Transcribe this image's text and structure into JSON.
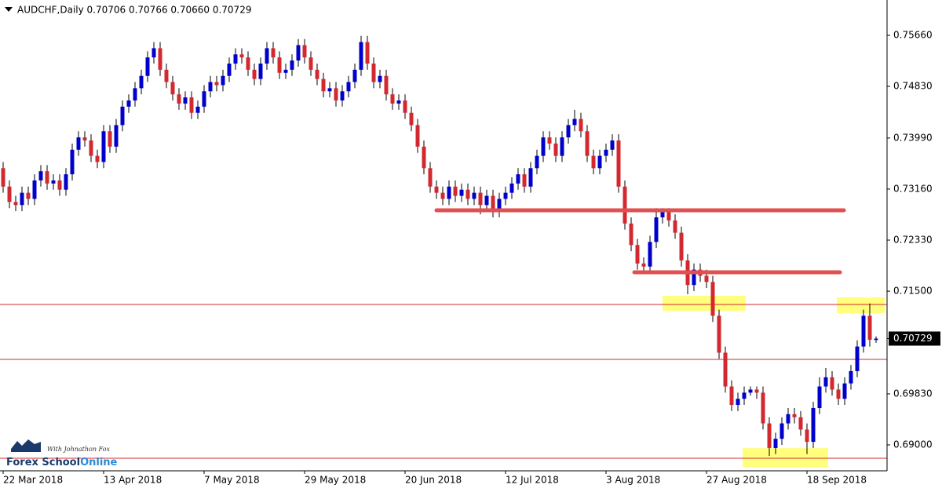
{
  "chart_data": {
    "type": "candlestick",
    "title": "AUDCHF,Daily  0.70706 0.70766 0.70660 0.70729",
    "categories": [
      "22 Mar 2018",
      null,
      null,
      null,
      null,
      null,
      null,
      null,
      null,
      null,
      null,
      null,
      null,
      null,
      null,
      null,
      "13 Apr 2018",
      null,
      null,
      null,
      null,
      null,
      null,
      null,
      null,
      null,
      null,
      null,
      null,
      null,
      null,
      null,
      "7 May 2018",
      null,
      null,
      null,
      null,
      null,
      null,
      null,
      null,
      null,
      null,
      null,
      null,
      null,
      null,
      null,
      "29 May 2018",
      null,
      null,
      null,
      null,
      null,
      null,
      null,
      null,
      null,
      null,
      null,
      null,
      null,
      null,
      null,
      "20 Jun 2018",
      null,
      null,
      null,
      null,
      null,
      null,
      null,
      null,
      null,
      null,
      null,
      null,
      null,
      null,
      null,
      "12 Jul 2018",
      null,
      null,
      null,
      null,
      null,
      null,
      null,
      null,
      null,
      null,
      null,
      null,
      null,
      null,
      null,
      "3 Aug 2018",
      null,
      null,
      null,
      null,
      null,
      null,
      null,
      null,
      null,
      null,
      null,
      null,
      null,
      null,
      null,
      "27 Aug 2018",
      null,
      null,
      null,
      null,
      null,
      null,
      null,
      null,
      null,
      null,
      null,
      null,
      null,
      null,
      null,
      "18 Sep 2018",
      null,
      null,
      null,
      null,
      null,
      null,
      null,
      null,
      null,
      null,
      null
    ],
    "ohlc": [
      [
        0.735,
        0.736,
        0.731,
        0.732
      ],
      [
        0.732,
        0.733,
        0.7285,
        0.7295
      ],
      [
        0.7295,
        0.7305,
        0.728,
        0.729
      ],
      [
        0.729,
        0.732,
        0.728,
        0.731
      ],
      [
        0.731,
        0.732,
        0.729,
        0.73
      ],
      [
        0.73,
        0.734,
        0.729,
        0.733
      ],
      [
        0.733,
        0.7355,
        0.732,
        0.7345
      ],
      [
        0.7345,
        0.7355,
        0.7315,
        0.7325
      ],
      [
        0.7325,
        0.734,
        0.7315,
        0.733
      ],
      [
        0.733,
        0.734,
        0.7305,
        0.7315
      ],
      [
        0.7315,
        0.735,
        0.7305,
        0.734
      ],
      [
        0.734,
        0.739,
        0.733,
        0.738
      ],
      [
        0.738,
        0.741,
        0.737,
        0.74
      ],
      [
        0.74,
        0.741,
        0.7385,
        0.7395
      ],
      [
        0.7395,
        0.7405,
        0.736,
        0.737
      ],
      [
        0.737,
        0.738,
        0.735,
        0.736
      ],
      [
        0.736,
        0.742,
        0.735,
        0.741
      ],
      [
        0.741,
        0.742,
        0.7375,
        0.7385
      ],
      [
        0.7385,
        0.743,
        0.7375,
        0.742
      ],
      [
        0.742,
        0.746,
        0.741,
        0.745
      ],
      [
        0.745,
        0.747,
        0.744,
        0.746
      ],
      [
        0.746,
        0.749,
        0.745,
        0.748
      ],
      [
        0.748,
        0.751,
        0.747,
        0.75
      ],
      [
        0.75,
        0.754,
        0.749,
        0.753
      ],
      [
        0.753,
        0.7555,
        0.752,
        0.7545
      ],
      [
        0.7545,
        0.7555,
        0.75,
        0.751
      ],
      [
        0.751,
        0.752,
        0.748,
        0.749
      ],
      [
        0.749,
        0.75,
        0.746,
        0.747
      ],
      [
        0.747,
        0.748,
        0.7445,
        0.7455
      ],
      [
        0.7455,
        0.7475,
        0.7445,
        0.7465
      ],
      [
        0.7465,
        0.7475,
        0.743,
        0.744
      ],
      [
        0.744,
        0.746,
        0.743,
        0.745
      ],
      [
        0.745,
        0.7485,
        0.744,
        0.7475
      ],
      [
        0.7475,
        0.75,
        0.7465,
        0.749
      ],
      [
        0.749,
        0.75,
        0.7475,
        0.7485
      ],
      [
        0.7485,
        0.751,
        0.7475,
        0.75
      ],
      [
        0.75,
        0.753,
        0.749,
        0.752
      ],
      [
        0.752,
        0.7545,
        0.751,
        0.7535
      ],
      [
        0.7535,
        0.7545,
        0.752,
        0.753
      ],
      [
        0.753,
        0.754,
        0.75,
        0.751
      ],
      [
        0.751,
        0.752,
        0.7485,
        0.7495
      ],
      [
        0.7495,
        0.753,
        0.7485,
        0.752
      ],
      [
        0.752,
        0.7555,
        0.751,
        0.7545
      ],
      [
        0.7545,
        0.7555,
        0.752,
        0.753
      ],
      [
        0.753,
        0.754,
        0.7495,
        0.7505
      ],
      [
        0.7505,
        0.752,
        0.7495,
        0.751
      ],
      [
        0.751,
        0.7535,
        0.75,
        0.7525
      ],
      [
        0.7525,
        0.756,
        0.7515,
        0.755
      ],
      [
        0.755,
        0.756,
        0.752,
        0.753
      ],
      [
        0.753,
        0.754,
        0.75,
        0.751
      ],
      [
        0.751,
        0.752,
        0.7485,
        0.7495
      ],
      [
        0.7495,
        0.7505,
        0.7465,
        0.7475
      ],
      [
        0.7475,
        0.749,
        0.7465,
        0.748
      ],
      [
        0.748,
        0.749,
        0.745,
        0.746
      ],
      [
        0.746,
        0.7485,
        0.745,
        0.7475
      ],
      [
        0.7475,
        0.75,
        0.7465,
        0.749
      ],
      [
        0.749,
        0.752,
        0.748,
        0.751
      ],
      [
        0.751,
        0.7565,
        0.75,
        0.7555
      ],
      [
        0.7555,
        0.7565,
        0.751,
        0.752
      ],
      [
        0.752,
        0.753,
        0.748,
        0.749
      ],
      [
        0.749,
        0.751,
        0.748,
        0.75
      ],
      [
        0.75,
        0.751,
        0.746,
        0.747
      ],
      [
        0.747,
        0.748,
        0.7445,
        0.7455
      ],
      [
        0.7455,
        0.747,
        0.7445,
        0.746
      ],
      [
        0.746,
        0.747,
        0.743,
        0.744
      ],
      [
        0.744,
        0.745,
        0.741,
        0.742
      ],
      [
        0.742,
        0.743,
        0.7375,
        0.7385
      ],
      [
        0.7385,
        0.7395,
        0.734,
        0.735
      ],
      [
        0.735,
        0.736,
        0.731,
        0.732
      ],
      [
        0.732,
        0.733,
        0.73,
        0.731
      ],
      [
        0.731,
        0.732,
        0.729,
        0.73
      ],
      [
        0.73,
        0.733,
        0.729,
        0.732
      ],
      [
        0.732,
        0.733,
        0.7295,
        0.7305
      ],
      [
        0.7305,
        0.7325,
        0.7295,
        0.7315
      ],
      [
        0.7315,
        0.7325,
        0.729,
        0.73
      ],
      [
        0.73,
        0.732,
        0.729,
        0.731
      ],
      [
        0.731,
        0.732,
        0.7275,
        0.729
      ],
      [
        0.729,
        0.7315,
        0.728,
        0.7305
      ],
      [
        0.7305,
        0.7315,
        0.727,
        0.728
      ],
      [
        0.728,
        0.731,
        0.727,
        0.73
      ],
      [
        0.73,
        0.732,
        0.729,
        0.731
      ],
      [
        0.731,
        0.7335,
        0.73,
        0.7325
      ],
      [
        0.7325,
        0.735,
        0.7315,
        0.734
      ],
      [
        0.734,
        0.735,
        0.731,
        0.732
      ],
      [
        0.732,
        0.736,
        0.731,
        0.735
      ],
      [
        0.735,
        0.738,
        0.734,
        0.737
      ],
      [
        0.737,
        0.741,
        0.736,
        0.74
      ],
      [
        0.74,
        0.741,
        0.738,
        0.739
      ],
      [
        0.739,
        0.74,
        0.736,
        0.737
      ],
      [
        0.737,
        0.741,
        0.736,
        0.74
      ],
      [
        0.74,
        0.743,
        0.739,
        0.742
      ],
      [
        0.742,
        0.7445,
        0.741,
        0.743
      ],
      [
        0.743,
        0.744,
        0.74,
        0.741
      ],
      [
        0.741,
        0.742,
        0.736,
        0.737
      ],
      [
        0.737,
        0.738,
        0.734,
        0.735
      ],
      [
        0.735,
        0.738,
        0.734,
        0.737
      ],
      [
        0.737,
        0.739,
        0.736,
        0.738
      ],
      [
        0.738,
        0.7405,
        0.737,
        0.7395
      ],
      [
        0.7395,
        0.7405,
        0.731,
        0.732
      ],
      [
        0.732,
        0.733,
        0.725,
        0.726
      ],
      [
        0.726,
        0.727,
        0.7215,
        0.7225
      ],
      [
        0.7225,
        0.7235,
        0.7185,
        0.7195
      ],
      [
        0.7195,
        0.7205,
        0.718,
        0.719
      ],
      [
        0.719,
        0.724,
        0.718,
        0.723
      ],
      [
        0.723,
        0.7285,
        0.722,
        0.727
      ],
      [
        0.727,
        0.7285,
        0.726,
        0.728
      ],
      [
        0.728,
        0.7285,
        0.7255,
        0.7265
      ],
      [
        0.7265,
        0.7275,
        0.7235,
        0.7245
      ],
      [
        0.7245,
        0.7255,
        0.719,
        0.72
      ],
      [
        0.72,
        0.721,
        0.7145,
        0.716
      ],
      [
        0.716,
        0.7195,
        0.715,
        0.7185
      ],
      [
        0.7185,
        0.7195,
        0.7165,
        0.7175
      ],
      [
        0.7175,
        0.7185,
        0.7155,
        0.7165
      ],
      [
        0.7165,
        0.7175,
        0.71,
        0.711
      ],
      [
        0.711,
        0.712,
        0.704,
        0.705
      ],
      [
        0.705,
        0.706,
        0.6985,
        0.6995
      ],
      [
        0.6995,
        0.7005,
        0.6955,
        0.6965
      ],
      [
        0.6965,
        0.6985,
        0.6955,
        0.6975
      ],
      [
        0.6975,
        0.6995,
        0.6965,
        0.6985
      ],
      [
        0.6985,
        0.6995,
        0.698,
        0.699
      ],
      [
        0.699,
        0.6995,
        0.6975,
        0.6985
      ],
      [
        0.6985,
        0.6995,
        0.6925,
        0.6935
      ],
      [
        0.6935,
        0.6945,
        0.6882,
        0.6895
      ],
      [
        0.6895,
        0.692,
        0.6885,
        0.691
      ],
      [
        0.691,
        0.6945,
        0.69,
        0.6935
      ],
      [
        0.6935,
        0.696,
        0.6925,
        0.695
      ],
      [
        0.695,
        0.696,
        0.6935,
        0.6945
      ],
      [
        0.6945,
        0.6955,
        0.6915,
        0.6925
      ],
      [
        0.6925,
        0.6935,
        0.6885,
        0.6905
      ],
      [
        0.6905,
        0.697,
        0.6895,
        0.696
      ],
      [
        0.696,
        0.701,
        0.695,
        0.6995
      ],
      [
        0.6995,
        0.7025,
        0.6985,
        0.701
      ],
      [
        0.701,
        0.702,
        0.698,
        0.699
      ],
      [
        0.699,
        0.7,
        0.6965,
        0.6975
      ],
      [
        0.6975,
        0.701,
        0.6965,
        0.7
      ],
      [
        0.7,
        0.703,
        0.699,
        0.702
      ],
      [
        0.702,
        0.707,
        0.701,
        0.706
      ],
      [
        0.706,
        0.712,
        0.705,
        0.711
      ],
      [
        0.711,
        0.713,
        0.706,
        0.7071
      ],
      [
        0.70706,
        0.70766,
        0.7066,
        0.70729
      ]
    ],
    "up_color": "#0000cd",
    "down_color": "#d3282e",
    "ylim": [
      0.68579,
      0.76234
    ],
    "yticks": [
      {
        "value": 0.7566,
        "label": "0.75660"
      },
      {
        "value": 0.7483,
        "label": "0.74830"
      },
      {
        "value": 0.7399,
        "label": "0.73990"
      },
      {
        "value": 0.7316,
        "label": "0.73160"
      },
      {
        "value": 0.7233,
        "label": "0.72330"
      },
      {
        "value": 0.715,
        "label": "0.71500"
      },
      {
        "value": 0.6983,
        "label": "0.69830"
      },
      {
        "value": 0.69,
        "label": "0.69000"
      }
    ],
    "current_price": {
      "value": 0.70729,
      "label": "0.70729"
    },
    "drawn_levels": [
      0.72815,
      0.71807
    ],
    "horizontal_lines": [
      0.71284,
      0.70391,
      0.68783
    ],
    "highlight_zones": [
      [
        0.71424,
        0.71182
      ],
      [
        0.71398,
        0.71143
      ],
      [
        0.68947,
        0.68641
      ]
    ],
    "watermark": {
      "byline": "With Johnathon Fox",
      "brand_main": "Forex School",
      "brand_accent": "Online"
    }
  }
}
